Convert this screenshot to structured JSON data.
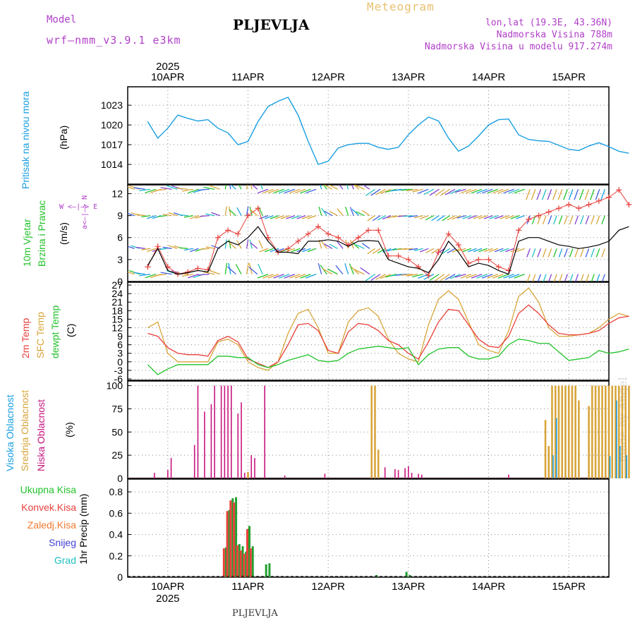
{
  "header": {
    "model_label": "Model",
    "model_name": "wrf–nmm_v3.9.1 e3km",
    "title": "PLJEVLJA",
    "meteogram": "Meteogram",
    "lonlat": "lon,lat (19.3E, 43.36N)",
    "altitude": "Nadmorska Visina 788m",
    "model_altitude": "Nadmorska Visina u modelu 917.274m",
    "footer_title": "PLJEVLJA",
    "credit": "made by Angel",
    "year": "2025"
  },
  "colors": {
    "pressure": "#1a9fe0",
    "wind_black": "#000000",
    "gust": "#e8413c",
    "temp2m": "#e8413c",
    "sfc": "#d8a53a",
    "dewpt": "#22c22a",
    "high_cloud": "#1a9fe0",
    "mid_cloud": "#d8a53a",
    "low_cloud": "#c8157f",
    "precip_total": "#22a030",
    "precip_conv": "#e8413c",
    "precip_fz": "#f07a30",
    "snow": "#4040d0",
    "hail": "#20c0c0"
  },
  "dates": [
    "10APR",
    "11APR",
    "12APR",
    "13APR",
    "14APR",
    "15APR"
  ],
  "panel_labels": {
    "pressure": {
      "title": "Pritisak na nivou mora",
      "unit": "(hPa)"
    },
    "wind": {
      "title1": "10m Vjetar",
      "title2": "Brzina i Pravac",
      "unit": "(m/s)",
      "compass_ns": "а<—|—> N",
      "compass_we": "W <—|—> E"
    },
    "temp": {
      "l1": "2m Temp",
      "l2": "SFC Temp",
      "l3": "dewpt Temp",
      "unit": "(C)"
    },
    "cloud": {
      "l1": "Visoka Oblacnost",
      "l2": "Srednja Oblacnost",
      "l3": "Niska Oblacnost",
      "unit": "(%)"
    },
    "precip": {
      "l1": "Ukupna Kisa",
      "l2": "Konvek.Kisa",
      "l3": "Zaledj.Kisa",
      "l4": "Snijeg",
      "l5": "Grad",
      "unit": "1hr Precip (mm)"
    }
  },
  "chart_data": [
    {
      "type": "line",
      "title": "Pritisak na nivou mora",
      "ylabel": "(hPa)",
      "x_unit": "hours since 2025-04-09 18:00",
      "ylim": [
        1011,
        1025.8
      ],
      "yticks": [
        1014,
        1017,
        1020,
        1023
      ],
      "series": [
        {
          "name": "Pressure",
          "x": [
            0,
            3,
            6,
            9,
            12,
            15,
            18,
            21,
            24,
            27,
            30,
            33,
            36,
            39,
            42,
            45,
            48,
            51,
            54,
            57,
            60,
            63,
            66,
            69,
            72,
            75,
            78,
            81,
            84,
            87,
            90,
            93,
            96,
            99,
            102,
            105,
            108,
            111,
            114,
            117,
            120,
            123,
            126,
            129,
            132,
            135,
            138,
            141,
            144
          ],
          "values": [
            1020.5,
            1018,
            1019.5,
            1021.5,
            1021,
            1020.6,
            1020.8,
            1019.5,
            1018.8,
            1017,
            1017.5,
            1020.5,
            1022.8,
            1023.6,
            1024.2,
            1021.5,
            1017.5,
            1014,
            1014.5,
            1016.5,
            1017,
            1017.2,
            1017.2,
            1016.6,
            1016.3,
            1016.6,
            1018.5,
            1020,
            1021.2,
            1020.6,
            1018,
            1016,
            1016.8,
            1018.3,
            1020,
            1020.8,
            1020.9,
            1018.5,
            1017.8,
            1017.6,
            1017.5,
            1016.9,
            1016.3,
            1016.1,
            1016.8,
            1017.3,
            1016.7,
            1016,
            1015.7
          ]
        }
      ]
    },
    {
      "type": "line",
      "title": "10m Vjetar Brzina i Pravac",
      "ylabel": "(m/s)",
      "x_unit": "hours since 2025-04-09 18:00",
      "ylim": [
        0,
        13.2
      ],
      "yticks": [
        0,
        3,
        6,
        9,
        12
      ],
      "series": [
        {
          "name": "Wind speed",
          "x": [
            0,
            3,
            6,
            9,
            12,
            15,
            18,
            21,
            24,
            27,
            30,
            33,
            36,
            39,
            42,
            45,
            48,
            51,
            54,
            57,
            60,
            63,
            66,
            69,
            72,
            75,
            78,
            81,
            84,
            87,
            90,
            93,
            96,
            99,
            102,
            105,
            108,
            111,
            114,
            117,
            120,
            123,
            126,
            129,
            132,
            135,
            138,
            141,
            144
          ],
          "values": [
            2.2,
            4.5,
            1.5,
            1,
            1.2,
            1.5,
            1.3,
            4.5,
            5.5,
            5,
            6,
            7.5,
            5.5,
            4,
            4,
            3.8,
            5.5,
            5.5,
            5.7,
            5.5,
            4.8,
            5.5,
            5.6,
            5.5,
            3,
            2.5,
            2,
            1.8,
            1.2,
            3,
            5.5,
            4,
            2,
            2.5,
            2.2,
            1.5,
            1,
            5.5,
            6,
            6,
            5.5,
            5,
            4.8,
            4.5,
            4.7,
            5,
            5.5,
            7,
            7.5
          ]
        },
        {
          "name": "Wind gust",
          "x": [
            0,
            3,
            6,
            9,
            12,
            15,
            18,
            21,
            24,
            27,
            30,
            33,
            36,
            39,
            42,
            45,
            48,
            51,
            54,
            57,
            60,
            63,
            66,
            69,
            72,
            75,
            78,
            81,
            84,
            87,
            90,
            93,
            96,
            99,
            102,
            105,
            108,
            111,
            114,
            117,
            120,
            123,
            126,
            129,
            132,
            135,
            138,
            141,
            144
          ],
          "values": [
            2,
            4.8,
            2,
            1,
            1.3,
            1.8,
            1.6,
            6,
            7,
            6.5,
            9,
            10,
            6,
            4,
            4.5,
            5.5,
            6.5,
            7.5,
            6.5,
            6,
            5,
            6,
            7,
            7,
            3.5,
            3.5,
            3,
            2,
            0.8,
            4,
            6.5,
            5,
            2.5,
            3,
            3,
            2,
            1.5,
            7,
            8.5,
            9,
            9.5,
            10,
            10.5,
            10,
            10.5,
            11,
            11.5,
            12.5,
            10.5
          ]
        }
      ]
    },
    {
      "type": "line",
      "title": "Temperature",
      "ylabel": "(C)",
      "x_unit": "hours since 2025-04-09 18:00",
      "ylim": [
        -6.5,
        28
      ],
      "yticks": [
        -6,
        -3,
        0,
        3,
        6,
        9,
        12,
        15,
        18,
        21,
        24,
        27
      ],
      "series": [
        {
          "name": "2m Temp",
          "x": [
            0,
            3,
            6,
            9,
            12,
            15,
            18,
            21,
            24,
            27,
            30,
            33,
            36,
            39,
            42,
            45,
            48,
            51,
            54,
            57,
            60,
            63,
            66,
            69,
            72,
            75,
            78,
            81,
            84,
            87,
            90,
            93,
            96,
            99,
            102,
            105,
            108,
            111,
            114,
            117,
            120,
            123,
            126,
            129,
            132,
            135,
            138,
            141,
            144
          ],
          "values": [
            10,
            9,
            5,
            3,
            2.5,
            2.5,
            2,
            7.5,
            9,
            7,
            1,
            -0.5,
            -2,
            0,
            6,
            13,
            13.5,
            11,
            4,
            3,
            10.5,
            13.5,
            13,
            11,
            7.5,
            6,
            3,
            1,
            7,
            14,
            18.5,
            18,
            13,
            8,
            5.5,
            5,
            9,
            17,
            20,
            17,
            13,
            10,
            9.5,
            9.5,
            10,
            11,
            13.5,
            15.5,
            16
          ]
        },
        {
          "name": "SFC Temp",
          "x": [
            0,
            3,
            6,
            9,
            12,
            15,
            18,
            21,
            24,
            27,
            30,
            33,
            36,
            39,
            42,
            45,
            48,
            51,
            54,
            57,
            60,
            63,
            66,
            69,
            72,
            75,
            78,
            81,
            84,
            87,
            90,
            93,
            96,
            99,
            102,
            105,
            108,
            111,
            114,
            117,
            120,
            123,
            126,
            129,
            132,
            135,
            138,
            141,
            144
          ],
          "values": [
            12,
            14,
            3,
            0,
            0,
            0,
            0,
            7,
            8,
            6,
            0,
            -2,
            -3,
            0,
            10,
            17,
            18.5,
            12,
            3,
            3,
            14,
            18,
            19,
            16,
            8,
            3,
            1,
            0,
            13,
            22,
            25,
            22,
            14,
            6,
            4,
            3,
            11,
            23,
            26,
            21,
            12,
            9,
            9,
            9.5,
            10,
            12,
            15,
            17,
            16
          ]
        },
        {
          "name": "dewpt Temp",
          "x": [
            0,
            3,
            6,
            9,
            12,
            15,
            18,
            21,
            24,
            27,
            30,
            33,
            36,
            39,
            42,
            45,
            48,
            51,
            54,
            57,
            60,
            63,
            66,
            69,
            72,
            75,
            78,
            81,
            84,
            87,
            90,
            93,
            96,
            99,
            102,
            105,
            108,
            111,
            114,
            117,
            120,
            123,
            126,
            129,
            132,
            135,
            138,
            141,
            144
          ],
          "values": [
            -1,
            -4.5,
            -2.5,
            -1,
            -1,
            -1,
            -1,
            2,
            2,
            1.5,
            1.5,
            -1,
            -2,
            -1,
            0.5,
            1.5,
            2.5,
            0.5,
            0,
            0.5,
            3,
            4.5,
            5,
            5.5,
            5,
            4.5,
            5,
            -1,
            2.5,
            4.5,
            5,
            5,
            2,
            1,
            1,
            2,
            6,
            8,
            7.5,
            6.5,
            6.5,
            3.5,
            0.5,
            1,
            1.5,
            4,
            3,
            3.5,
            4.5
          ]
        }
      ]
    },
    {
      "type": "bar",
      "title": "Oblacnost",
      "ylabel": "(%)",
      "x_unit": "hours since 2025-04-09 18:00",
      "ylim": [
        0,
        105
      ],
      "yticks": [
        0,
        25,
        50,
        75,
        100
      ],
      "series": [
        {
          "name": "Niska Oblacnost",
          "x": [
            2,
            6,
            7,
            14,
            15,
            17,
            19,
            20,
            22,
            23,
            24,
            25,
            27,
            28,
            29,
            31,
            32,
            35,
            41,
            53,
            68,
            69,
            71,
            74,
            75,
            77,
            78,
            79,
            81,
            82,
            108
          ],
          "values": [
            6,
            9,
            22,
            36,
            100,
            72,
            80,
            100,
            100,
            100,
            100,
            100,
            70,
            82,
            6,
            25,
            22,
            100,
            3,
            5,
            25,
            24,
            12,
            10,
            9,
            11,
            13,
            6,
            5,
            4,
            4
          ]
        },
        {
          "name": "Srednja Oblacnost",
          "x": [
            30,
            67,
            68,
            69,
            119,
            120,
            121,
            122,
            123,
            124,
            125,
            126,
            127,
            128,
            129,
            130,
            131,
            132,
            133,
            134,
            135,
            136,
            137,
            138,
            139,
            140,
            141,
            142,
            143,
            144
          ],
          "values": [
            7,
            100,
            100,
            31,
            63,
            35,
            100,
            100,
            100,
            100,
            100,
            100,
            100,
            100,
            84,
            0,
            0,
            78,
            100,
            100,
            100,
            100,
            100,
            100,
            100,
            100,
            100,
            100,
            100,
            100
          ]
        },
        {
          "name": "Visoka Oblacnost",
          "x": [
            121,
            122,
            138,
            140,
            141,
            143
          ],
          "values": [
            25,
            65,
            24,
            84,
            35,
            25
          ]
        }
      ]
    },
    {
      "type": "bar",
      "title": "1hr Precip",
      "ylabel": "(mm)",
      "x_unit": "hours since 2025-04-09 18:00",
      "ylim": [
        0,
        0.92
      ],
      "yticks": [
        0,
        0.2,
        0.4,
        0.6,
        0.8
      ],
      "series": [
        {
          "name": "Ukupna Kisa",
          "x": [
            23,
            24,
            25,
            26,
            27,
            28,
            29,
            30,
            31,
            35,
            36,
            68,
            77,
            78
          ],
          "values": [
            0.28,
            0.63,
            0.74,
            0.75,
            0.31,
            0.29,
            0.24,
            0.48,
            0.29,
            0.12,
            0.13,
            0.02,
            0.05,
            0.02
          ]
        },
        {
          "name": "Konvek.Kisa",
          "x": [
            23,
            24,
            25,
            26,
            27,
            28,
            29,
            30,
            31
          ],
          "values": [
            0.27,
            0.62,
            0.72,
            0.7,
            0.3,
            0.25,
            0.22,
            0.45,
            0.27
          ]
        }
      ]
    }
  ]
}
